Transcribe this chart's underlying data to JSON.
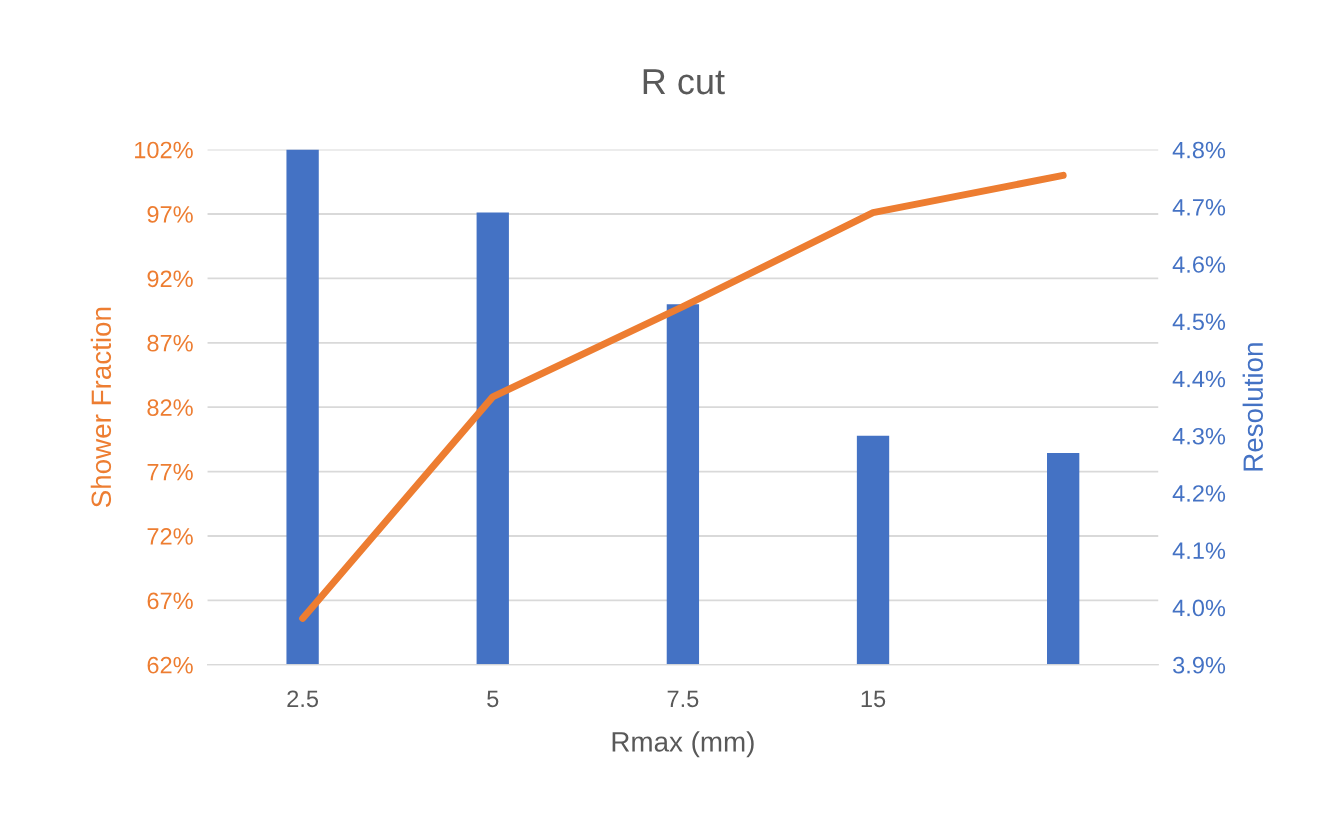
{
  "chart_data": {
    "type": "bar",
    "title": "R cut",
    "xlabel": "Rmax (mm)",
    "ylabel": "Shower Fraction",
    "y2label": "Resolution",
    "categories": [
      "2.5",
      "5",
      "7.5",
      "15",
      null
    ],
    "series": [
      {
        "axis": "y2",
        "color": "#4472c4",
        "values": [
          4.8,
          4.69,
          4.53,
          4.3,
          4.27
        ]
      },
      {
        "type": "line",
        "axis": "y",
        "color": "#ed7d31",
        "values": [
          65.6,
          82.8,
          89.8,
          97.1,
          100.0
        ]
      }
    ],
    "ylim": [
      62,
      102
    ],
    "yticks": [
      {
        "value": 62,
        "label": "62%"
      },
      {
        "value": 67,
        "label": "67%"
      },
      {
        "value": 72,
        "label": "72%"
      },
      {
        "value": 77,
        "label": "77%"
      },
      {
        "value": 82,
        "label": "82%"
      },
      {
        "value": 87,
        "label": "87%"
      },
      {
        "value": 92,
        "label": "92%"
      },
      {
        "value": 97,
        "label": "97%"
      },
      {
        "value": 102,
        "label": "102%"
      }
    ],
    "y2lim": [
      3.9,
      4.8
    ],
    "y2ticks": [
      {
        "value": 3.9,
        "label": "3.9%"
      },
      {
        "value": 4.0,
        "label": "4.0%"
      },
      {
        "value": 4.1,
        "label": "4.1%"
      },
      {
        "value": 4.2,
        "label": "4.2%"
      },
      {
        "value": 4.3,
        "label": "4.3%"
      },
      {
        "value": 4.4,
        "label": "4.4%"
      },
      {
        "value": 4.5,
        "label": "4.5%"
      },
      {
        "value": 4.6,
        "label": "4.6%"
      },
      {
        "value": 4.7,
        "label": "4.7%"
      },
      {
        "value": 4.8,
        "label": "4.8%"
      }
    ],
    "grid": "y",
    "marker": "none",
    "line_style": "solid"
  }
}
